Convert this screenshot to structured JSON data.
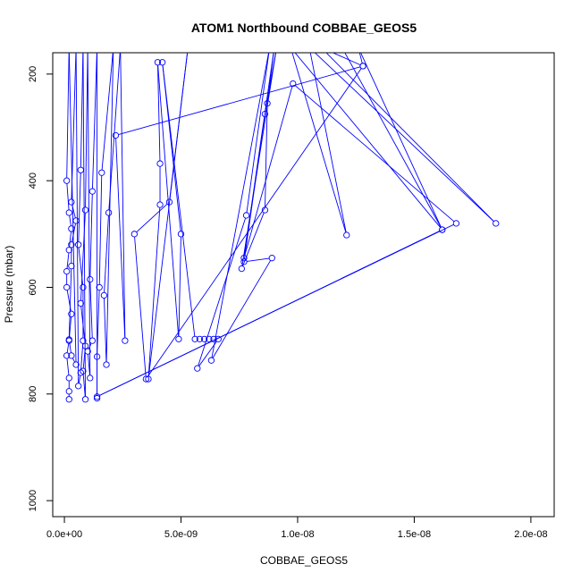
{
  "chart_data": {
    "type": "line",
    "title": "ATOM1 Northbound COBBAE_GEOS5",
    "xlabel": "COBBAE_GEOS5",
    "ylabel": "Pressure (mbar)",
    "xlim": [
      -5e-10,
      2.1e-08
    ],
    "ylim": [
      1030,
      160
    ],
    "y_inverted": true,
    "x_ticks": [
      0,
      5e-09,
      1e-08,
      1.5e-08,
      2e-08
    ],
    "x_tick_labels": [
      "0.0e+00",
      "5.0e-09",
      "1.0e-08",
      "1.5e-08",
      "2.0e-08"
    ],
    "y_ticks": [
      200,
      400,
      600,
      800,
      1000
    ],
    "y_tick_labels": [
      "200",
      "400",
      "600",
      "800",
      "1000"
    ],
    "grid": false,
    "series_color": "#0000ff",
    "points": [
      [
        2e-10,
        810
      ],
      [
        2e-10,
        795
      ],
      [
        2e-10,
        770
      ],
      [
        1e-10,
        728
      ],
      [
        2e-10,
        700
      ],
      [
        3e-10,
        650
      ],
      [
        1e-10,
        600
      ],
      [
        1e-10,
        570
      ],
      [
        2e-10,
        530
      ],
      [
        3e-10,
        490
      ],
      [
        2e-10,
        460
      ],
      [
        1e-10,
        400
      ],
      [
        2e-10,
        150
      ],
      [
        5e-10,
        745
      ],
      [
        3e-10,
        728
      ],
      [
        2e-10,
        698
      ],
      [
        3e-10,
        560
      ],
      [
        3e-10,
        520
      ],
      [
        5e-10,
        475
      ],
      [
        3e-10,
        440
      ],
      [
        5e-10,
        150
      ],
      [
        6e-10,
        785
      ],
      [
        7e-10,
        760
      ],
      [
        8e-10,
        700
      ],
      [
        8e-10,
        600
      ],
      [
        6e-10,
        520
      ],
      [
        7e-10,
        380
      ],
      [
        8e-10,
        150
      ],
      [
        9e-10,
        810
      ],
      [
        8e-10,
        757
      ],
      [
        9e-10,
        710
      ],
      [
        7e-10,
        630
      ],
      [
        9e-10,
        455
      ],
      [
        1e-09,
        150
      ],
      [
        1.1e-09,
        770
      ],
      [
        1e-09,
        720
      ],
      [
        1.2e-09,
        700
      ],
      [
        1.1e-09,
        585
      ],
      [
        1.2e-09,
        420
      ],
      [
        1.4e-09,
        150
      ],
      [
        1.4e-09,
        808
      ],
      [
        1.4e-09,
        730
      ],
      [
        1.5e-09,
        600
      ],
      [
        1.6e-09,
        385
      ],
      [
        2.1e-09,
        150
      ],
      [
        1.8e-09,
        745
      ],
      [
        1.7e-09,
        615
      ],
      [
        1.9e-09,
        460
      ],
      [
        2.4e-09,
        150
      ],
      [
        2.6e-09,
        700
      ],
      [
        2.2e-09,
        315
      ],
      [
        1.28e-08,
        185
      ],
      [
        3.5e-09,
        772
      ],
      [
        3e-09,
        500
      ],
      [
        4.5e-09,
        440
      ],
      [
        5.3e-09,
        150
      ],
      [
        3.6e-09,
        772
      ],
      [
        4.1e-09,
        445
      ],
      [
        4.1e-09,
        368
      ],
      [
        4e-09,
        178
      ],
      [
        4.9e-09,
        697
      ],
      [
        5e-09,
        500
      ],
      [
        4.2e-09,
        178
      ],
      [
        5.6e-09,
        697
      ],
      [
        5.8e-09,
        697
      ],
      [
        6e-09,
        697
      ],
      [
        6.2e-09,
        697
      ],
      [
        6.4e-09,
        697
      ],
      [
        6.6e-09,
        697
      ],
      [
        5.7e-09,
        752
      ],
      [
        7.8e-09,
        465
      ],
      [
        8.8e-09,
        150
      ],
      [
        6.3e-09,
        737
      ],
      [
        8.9e-09,
        545
      ],
      [
        7.7e-09,
        552
      ],
      [
        8.6e-09,
        275
      ],
      [
        9.1e-09,
        150
      ],
      [
        7.6e-09,
        565
      ],
      [
        8.6e-09,
        455
      ],
      [
        8.7e-09,
        255
      ],
      [
        9e-09,
        150
      ],
      [
        7.7e-09,
        545
      ],
      [
        9.8e-09,
        218
      ],
      [
        1.68e-08,
        480
      ],
      [
        1.4e-09,
        805
      ],
      [
        1.62e-08,
        492
      ],
      [
        9.7e-09,
        150
      ],
      [
        1.21e-08,
        502
      ],
      [
        1.05e-08,
        150
      ],
      [
        1.85e-08,
        480
      ],
      [
        1.1e-08,
        150
      ],
      [
        1.28e-08,
        185
      ],
      [
        1.26e-08,
        150
      ],
      [
        1.62e-08,
        492
      ],
      [
        1.19e-08,
        150
      ]
    ]
  }
}
